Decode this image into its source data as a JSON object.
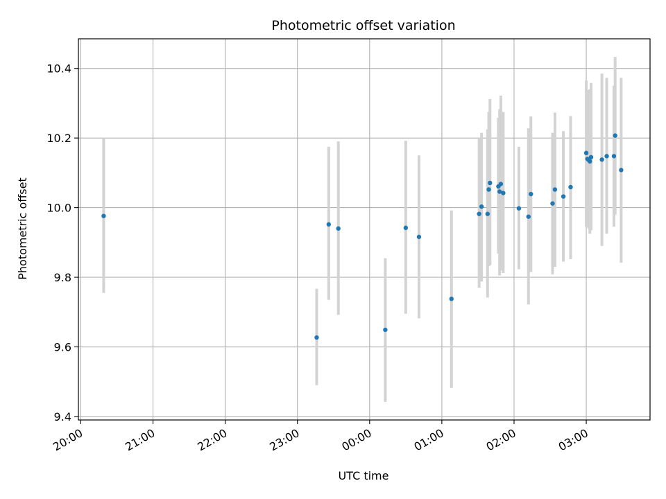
{
  "chart_data": {
    "type": "scatter",
    "title": "Photometric offset variation",
    "xlabel": "UTC time",
    "ylabel": "Photometric offset",
    "grid": true,
    "legend": "none",
    "colors": {
      "point": "#1f77b4",
      "errorbar": "#d3d3d3",
      "grid": "#b0b0b0"
    },
    "x_reference_date": "2000-01-01",
    "xlim": [
      "2000-01-01T19:58:00",
      "2000-01-02T03:53:00"
    ],
    "ylim": [
      9.39,
      10.485
    ],
    "x_ticks": [
      {
        "value": "2000-01-01T20:00:00",
        "label": "20:00"
      },
      {
        "value": "2000-01-01T21:00:00",
        "label": "21:00"
      },
      {
        "value": "2000-01-01T22:00:00",
        "label": "22:00"
      },
      {
        "value": "2000-01-01T23:00:00",
        "label": "23:00"
      },
      {
        "value": "2000-01-02T00:00:00",
        "label": "00:00"
      },
      {
        "value": "2000-01-02T01:00:00",
        "label": "01:00"
      },
      {
        "value": "2000-01-02T02:00:00",
        "label": "02:00"
      },
      {
        "value": "2000-01-02T03:00:00",
        "label": "03:00"
      }
    ],
    "y_ticks": [
      {
        "value": 9.4,
        "label": "9.4"
      },
      {
        "value": 9.6,
        "label": "9.6"
      },
      {
        "value": 9.8,
        "label": "9.8"
      },
      {
        "value": 10.0,
        "label": "10.0"
      },
      {
        "value": 10.2,
        "label": "10.2"
      },
      {
        "value": 10.4,
        "label": "10.4"
      }
    ],
    "points": [
      {
        "t": "2000-01-01T20:19:00",
        "y": 9.976,
        "lo": 9.755,
        "hi": 10.2
      },
      {
        "t": "2000-01-01T23:16:00",
        "y": 9.627,
        "lo": 9.49,
        "hi": 9.767
      },
      {
        "t": "2000-01-01T23:26:00",
        "y": 9.952,
        "lo": 9.735,
        "hi": 10.175
      },
      {
        "t": "2000-01-01T23:34:00",
        "y": 9.94,
        "lo": 9.692,
        "hi": 10.19
      },
      {
        "t": "2000-01-02T00:13:00",
        "y": 9.649,
        "lo": 9.442,
        "hi": 9.855
      },
      {
        "t": "2000-01-02T00:30:00",
        "y": 9.942,
        "lo": 9.695,
        "hi": 10.192
      },
      {
        "t": "2000-01-02T00:41:00",
        "y": 9.916,
        "lo": 9.682,
        "hi": 10.15
      },
      {
        "t": "2000-01-02T01:08:00",
        "y": 9.738,
        "lo": 9.482,
        "hi": 9.992
      },
      {
        "t": "2000-01-02T01:31:00",
        "y": 9.982,
        "lo": 9.77,
        "hi": 10.2
      },
      {
        "t": "2000-01-02T01:33:00",
        "y": 10.003,
        "lo": 9.788,
        "hi": 10.215
      },
      {
        "t": "2000-01-02T01:38:00",
        "y": 9.982,
        "lo": 9.742,
        "hi": 10.225
      },
      {
        "t": "2000-01-02T01:39:00",
        "y": 10.052,
        "lo": 9.832,
        "hi": 10.275
      },
      {
        "t": "2000-01-02T01:40:00",
        "y": 10.071,
        "lo": 9.835,
        "hi": 10.312
      },
      {
        "t": "2000-01-02T01:47:00",
        "y": 10.061,
        "lo": 9.868,
        "hi": 10.258
      },
      {
        "t": "2000-01-02T01:48:00",
        "y": 10.046,
        "lo": 9.805,
        "hi": 10.283
      },
      {
        "t": "2000-01-02T01:49:00",
        "y": 10.068,
        "lo": 9.82,
        "hi": 10.322
      },
      {
        "t": "2000-01-02T01:51:00",
        "y": 10.042,
        "lo": 9.812,
        "hi": 10.275
      },
      {
        "t": "2000-01-02T02:04:00",
        "y": 9.998,
        "lo": 9.823,
        "hi": 10.175
      },
      {
        "t": "2000-01-02T02:12:00",
        "y": 9.974,
        "lo": 9.722,
        "hi": 10.228
      },
      {
        "t": "2000-01-02T02:14:00",
        "y": 10.039,
        "lo": 9.815,
        "hi": 10.262
      },
      {
        "t": "2000-01-02T02:32:00",
        "y": 10.012,
        "lo": 9.808,
        "hi": 10.215
      },
      {
        "t": "2000-01-02T02:34:00",
        "y": 10.052,
        "lo": 9.83,
        "hi": 10.273
      },
      {
        "t": "2000-01-02T02:41:00",
        "y": 10.032,
        "lo": 9.845,
        "hi": 10.22
      },
      {
        "t": "2000-01-02T02:47:00",
        "y": 10.059,
        "lo": 9.852,
        "hi": 10.263
      },
      {
        "t": "2000-01-02T03:00:00",
        "y": 10.157,
        "lo": 9.945,
        "hi": 10.365
      },
      {
        "t": "2000-01-02T03:01:00",
        "y": 10.14,
        "lo": 9.948,
        "hi": 10.335
      },
      {
        "t": "2000-01-02T03:02:00",
        "y": 10.137,
        "lo": 9.94,
        "hi": 10.338
      },
      {
        "t": "2000-01-02T03:03:00",
        "y": 10.133,
        "lo": 9.925,
        "hi": 10.34
      },
      {
        "t": "2000-01-02T03:04:00",
        "y": 10.145,
        "lo": 9.935,
        "hi": 10.358
      },
      {
        "t": "2000-01-02T03:13:00",
        "y": 10.138,
        "lo": 9.89,
        "hi": 10.385
      },
      {
        "t": "2000-01-02T03:17:00",
        "y": 10.148,
        "lo": 9.925,
        "hi": 10.373
      },
      {
        "t": "2000-01-02T03:23:00",
        "y": 10.148,
        "lo": 9.945,
        "hi": 10.35
      },
      {
        "t": "2000-01-02T03:24:00",
        "y": 10.207,
        "lo": 9.98,
        "hi": 10.433
      },
      {
        "t": "2000-01-02T03:29:00",
        "y": 10.108,
        "lo": 9.842,
        "hi": 10.373
      }
    ]
  }
}
